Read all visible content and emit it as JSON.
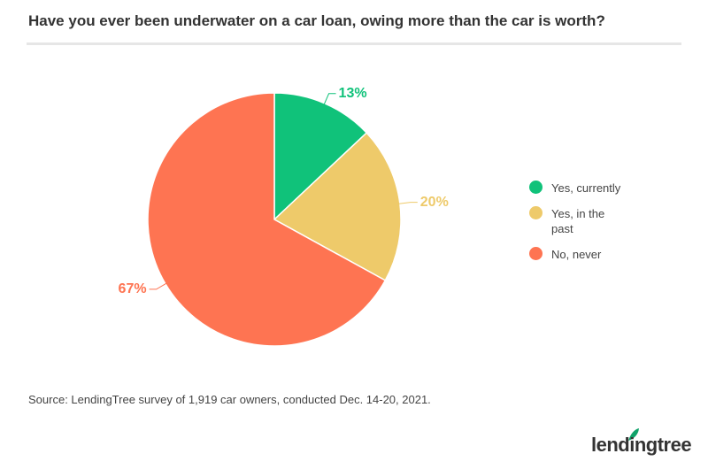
{
  "chart_data": {
    "type": "pie",
    "title": "Have you ever been underwater on a car loan, owing more than the car is worth?",
    "categories": [
      "Yes, currently",
      "Yes, in the past",
      "No, never"
    ],
    "values": [
      13,
      20,
      67
    ],
    "value_labels": [
      "13%",
      "20%",
      "67%"
    ],
    "colors": [
      "#10c27a",
      "#eeca6a",
      "#fe7452"
    ],
    "legend": "right",
    "source": "Source: LendingTree survey of 1,919 car owners, conducted Dec. 14-20, 2021.",
    "logo": "lendingtree"
  }
}
